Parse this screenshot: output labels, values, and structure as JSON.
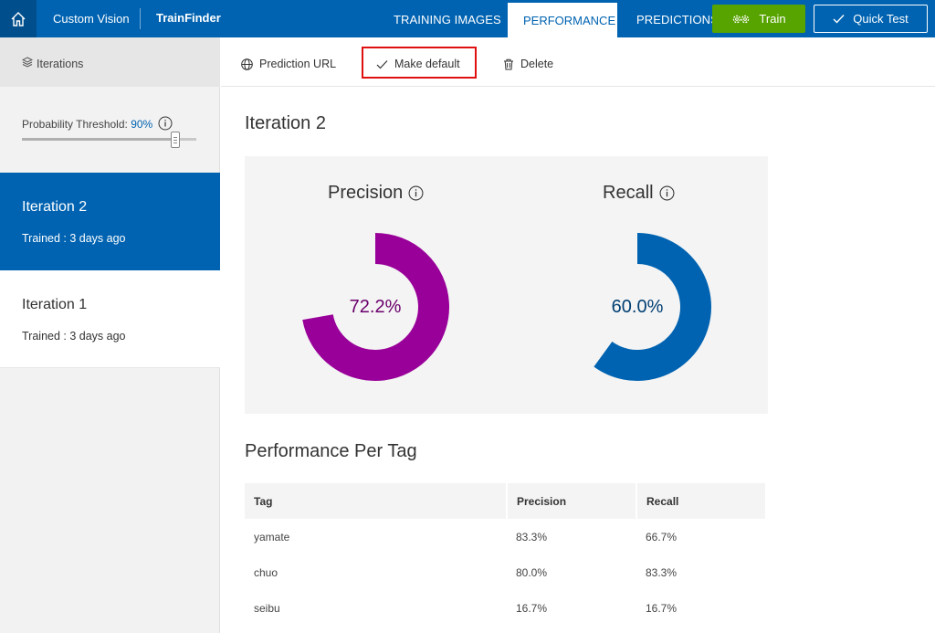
{
  "topbar": {
    "app_name": "Custom Vision",
    "project_name": "TrainFinder",
    "tabs": [
      {
        "label": "TRAINING IMAGES",
        "active": false
      },
      {
        "label": "PERFORMANCE",
        "active": true
      },
      {
        "label": "PREDICTIONS",
        "active": false
      }
    ],
    "train_label": "Train",
    "quick_test_label": "Quick Test",
    "colors": {
      "bar": "#0063b1",
      "home": "#004e8c",
      "train": "#57a300"
    }
  },
  "sidebar": {
    "header_label": "Iterations",
    "threshold_label": "Probability Threshold:",
    "threshold_value": "90%",
    "threshold_fraction": 0.9,
    "iterations": [
      {
        "title": "Iteration 2",
        "subtitle": "Trained : 3 days ago",
        "selected": true
      },
      {
        "title": "Iteration 1",
        "subtitle": "Trained : 3 days ago",
        "selected": false
      }
    ]
  },
  "toolbar": {
    "prediction_url_label": "Prediction URL",
    "make_default_label": "Make default",
    "delete_label": "Delete"
  },
  "main": {
    "iteration_title": "Iteration 2",
    "precision": {
      "label": "Precision",
      "value_text": "72.2%",
      "fraction": 0.722,
      "color": "#990099",
      "text_color": "#6b006b"
    },
    "recall": {
      "label": "Recall",
      "value_text": "60.0%",
      "fraction": 0.6,
      "color": "#0063b1",
      "text_color": "#003f73"
    },
    "per_tag_title": "Performance Per Tag",
    "table": {
      "headers": [
        "Tag",
        "Precision",
        "Recall"
      ],
      "rows": [
        [
          "yamate",
          "83.3%",
          "66.7%"
        ],
        [
          "chuo",
          "80.0%",
          "83.3%"
        ],
        [
          "seibu",
          "16.7%",
          "16.7%"
        ]
      ]
    }
  }
}
